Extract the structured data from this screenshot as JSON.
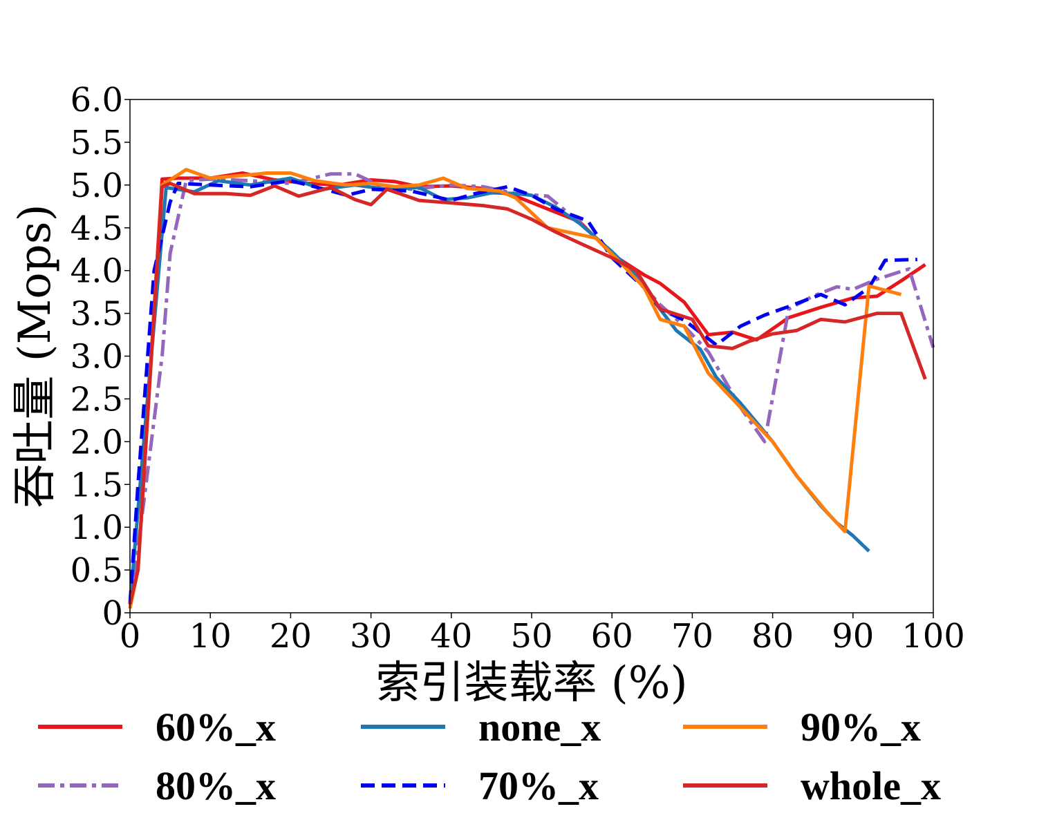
{
  "chart_data": {
    "type": "line",
    "xlabel": "索引装载率 (%)",
    "ylabel": "吞吐量 (Mops)",
    "xlim": [
      0,
      100
    ],
    "ylim": [
      0,
      6.0
    ],
    "xticks": [
      0,
      10,
      20,
      30,
      40,
      50,
      60,
      70,
      80,
      90,
      100
    ],
    "xtick_labels": [
      "0",
      "10",
      "20",
      "30",
      "40",
      "50",
      "60",
      "70",
      "80",
      "90",
      "100"
    ],
    "yticks": [
      0,
      0.5,
      1.0,
      1.5,
      2.0,
      2.5,
      3.0,
      3.5,
      4.0,
      4.5,
      5.0,
      5.5,
      6.0
    ],
    "ytick_labels": [
      "0",
      "0.5",
      "1.0",
      "1.5",
      "2.0",
      "2.5",
      "3.0",
      "3.5",
      "4.0",
      "4.5",
      "5.0",
      "5.5",
      "6.0"
    ],
    "grid": false,
    "legend_position": "bottom",
    "series": [
      {
        "name": "60%_x",
        "color": "#e8161b",
        "style": "solid",
        "points": [
          [
            0,
            0.1
          ],
          [
            1,
            0.5
          ],
          [
            4,
            5.07
          ],
          [
            6,
            5.08
          ],
          [
            10,
            5.08
          ],
          [
            14,
            5.14
          ],
          [
            18,
            5.06
          ],
          [
            22,
            5.02
          ],
          [
            26,
            5.0
          ],
          [
            30,
            5.06
          ],
          [
            33,
            5.04
          ],
          [
            36,
            4.98
          ],
          [
            40,
            4.99
          ],
          [
            44,
            4.96
          ],
          [
            48,
            4.87
          ],
          [
            52,
            4.72
          ],
          [
            56,
            4.57
          ],
          [
            60,
            4.19
          ],
          [
            64,
            3.95
          ],
          [
            66,
            3.85
          ],
          [
            69,
            3.63
          ],
          [
            72,
            3.25
          ],
          [
            75,
            3.28
          ],
          [
            78,
            3.19
          ],
          [
            82,
            3.45
          ],
          [
            86,
            3.57
          ],
          [
            90,
            3.68
          ],
          [
            93,
            3.7
          ],
          [
            96,
            3.88
          ],
          [
            99,
            4.07
          ]
        ]
      },
      {
        "name": "80%_x",
        "color": "#9467bd",
        "style": "dashdot",
        "points": [
          [
            0,
            0.05
          ],
          [
            2,
            1.5
          ],
          [
            4,
            3.0
          ],
          [
            5,
            4.2
          ],
          [
            7,
            5.05
          ],
          [
            10,
            5.07
          ],
          [
            15,
            5.05
          ],
          [
            20,
            5.02
          ],
          [
            25,
            5.13
          ],
          [
            28,
            5.13
          ],
          [
            31,
            5.0
          ],
          [
            35,
            4.95
          ],
          [
            40,
            5.0
          ],
          [
            44,
            4.98
          ],
          [
            48,
            4.9
          ],
          [
            52,
            4.87
          ],
          [
            56,
            4.56
          ],
          [
            60,
            4.2
          ],
          [
            63,
            3.92
          ],
          [
            66,
            3.6
          ],
          [
            69,
            3.35
          ],
          [
            72,
            3.05
          ],
          [
            76,
            2.4
          ],
          [
            79,
            2.0
          ],
          [
            82,
            3.55
          ],
          [
            85,
            3.7
          ],
          [
            88,
            3.81
          ],
          [
            90,
            3.78
          ],
          [
            93,
            3.9
          ],
          [
            97,
            4.02
          ],
          [
            100,
            3.1
          ]
        ]
      },
      {
        "name": "none_x",
        "color": "#1f77b4",
        "style": "solid",
        "points": [
          [
            0,
            0.1
          ],
          [
            2,
            2.3
          ],
          [
            4.5,
            4.97
          ],
          [
            8,
            4.92
          ],
          [
            11,
            5.05
          ],
          [
            15,
            5.0
          ],
          [
            20,
            5.08
          ],
          [
            24,
            4.95
          ],
          [
            28,
            5.0
          ],
          [
            32,
            4.95
          ],
          [
            36,
            4.97
          ],
          [
            39,
            4.83
          ],
          [
            42,
            4.85
          ],
          [
            45,
            4.91
          ],
          [
            48,
            4.9
          ],
          [
            50,
            4.88
          ],
          [
            53,
            4.74
          ],
          [
            56,
            4.55
          ],
          [
            60,
            4.22
          ],
          [
            64,
            3.85
          ],
          [
            66,
            3.55
          ],
          [
            68,
            3.3
          ],
          [
            71,
            3.08
          ],
          [
            73,
            2.75
          ],
          [
            76,
            2.45
          ],
          [
            80,
            2.0
          ],
          [
            83,
            1.6
          ],
          [
            86,
            1.25
          ],
          [
            88,
            1.05
          ],
          [
            90,
            0.9
          ],
          [
            92,
            0.72
          ]
        ]
      },
      {
        "name": "70%_x",
        "color": "#0000ee",
        "style": "dashed",
        "points": [
          [
            0,
            0.1
          ],
          [
            1,
            1.5
          ],
          [
            3,
            4.0
          ],
          [
            5,
            4.8
          ],
          [
            6,
            5.02
          ],
          [
            10,
            5.0
          ],
          [
            15,
            4.98
          ],
          [
            20,
            5.05
          ],
          [
            23,
            4.98
          ],
          [
            27,
            4.88
          ],
          [
            30,
            4.95
          ],
          [
            35,
            4.93
          ],
          [
            40,
            4.82
          ],
          [
            43,
            4.9
          ],
          [
            47,
            4.98
          ],
          [
            50,
            4.88
          ],
          [
            53,
            4.72
          ],
          [
            57,
            4.58
          ],
          [
            60,
            4.15
          ],
          [
            64,
            3.8
          ],
          [
            66,
            3.55
          ],
          [
            69,
            3.42
          ],
          [
            73,
            3.13
          ],
          [
            76,
            3.35
          ],
          [
            79,
            3.48
          ],
          [
            82,
            3.58
          ],
          [
            86,
            3.72
          ],
          [
            89,
            3.6
          ],
          [
            92,
            3.8
          ],
          [
            94,
            4.12
          ],
          [
            98,
            4.13
          ]
        ]
      },
      {
        "name": "90%_x",
        "color": "#ff7f0e",
        "style": "solid",
        "points": [
          [
            0,
            0.05
          ],
          [
            1,
            0.5
          ],
          [
            4,
            5.0
          ],
          [
            7,
            5.18
          ],
          [
            10,
            5.08
          ],
          [
            15,
            5.12
          ],
          [
            17,
            5.14
          ],
          [
            20,
            5.14
          ],
          [
            23,
            5.05
          ],
          [
            27,
            5.0
          ],
          [
            30,
            5.02
          ],
          [
            33,
            4.98
          ],
          [
            36,
            5.0
          ],
          [
            39,
            5.08
          ],
          [
            42,
            4.96
          ],
          [
            46,
            4.93
          ],
          [
            48,
            4.85
          ],
          [
            52,
            4.5
          ],
          [
            55,
            4.44
          ],
          [
            58,
            4.38
          ],
          [
            61,
            4.1
          ],
          [
            64,
            3.8
          ],
          [
            66,
            3.43
          ],
          [
            69,
            3.35
          ],
          [
            72,
            2.8
          ],
          [
            76,
            2.4
          ],
          [
            80,
            2.0
          ],
          [
            83,
            1.6
          ],
          [
            87,
            1.15
          ],
          [
            89,
            0.95
          ],
          [
            92,
            3.82
          ],
          [
            96,
            3.72
          ]
        ]
      },
      {
        "name": "whole_x",
        "color": "#d62728",
        "style": "solid",
        "points": [
          [
            0,
            0.1
          ],
          [
            1,
            0.5
          ],
          [
            4,
            4.98
          ],
          [
            5,
            5.02
          ],
          [
            8,
            4.9
          ],
          [
            12,
            4.9
          ],
          [
            15,
            4.88
          ],
          [
            18,
            4.99
          ],
          [
            21,
            4.87
          ],
          [
            25,
            4.97
          ],
          [
            28,
            4.83
          ],
          [
            30,
            4.77
          ],
          [
            32,
            4.95
          ],
          [
            36,
            4.82
          ],
          [
            40,
            4.79
          ],
          [
            44,
            4.76
          ],
          [
            47,
            4.72
          ],
          [
            50,
            4.6
          ],
          [
            53,
            4.45
          ],
          [
            56,
            4.32
          ],
          [
            60,
            4.15
          ],
          [
            63,
            4.0
          ],
          [
            66,
            3.55
          ],
          [
            70,
            3.43
          ],
          [
            72,
            3.12
          ],
          [
            75,
            3.09
          ],
          [
            77,
            3.17
          ],
          [
            80,
            3.26
          ],
          [
            83,
            3.3
          ],
          [
            86,
            3.43
          ],
          [
            89,
            3.4
          ],
          [
            93,
            3.5
          ],
          [
            96,
            3.5
          ],
          [
            99,
            2.73
          ]
        ]
      }
    ]
  }
}
